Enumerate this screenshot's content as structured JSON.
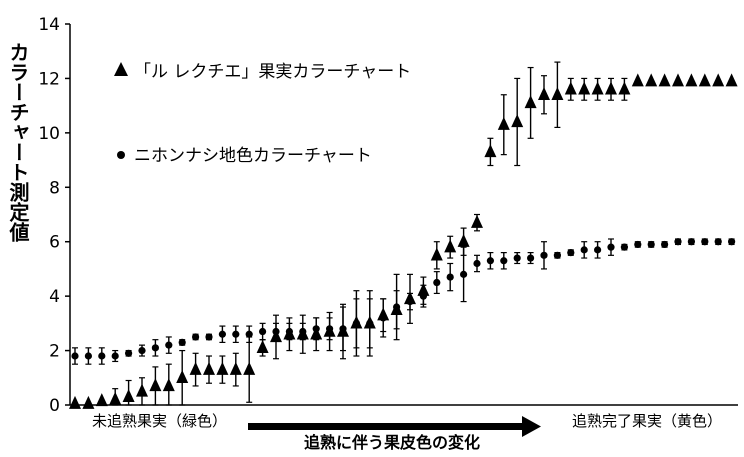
{
  "chart_data": {
    "type": "scatter",
    "ylabel": "カラーチャート測定値",
    "ylim": [
      0,
      14
    ],
    "yticks": [
      "0",
      "2",
      "4",
      "6",
      "8",
      "10",
      "12",
      "14"
    ],
    "x_left_label": "未追熟果実（緑色）",
    "x_middle_label": "追熟に伴う果皮色の変化",
    "x_right_label": "追熟完了果実（黄色）",
    "series": [
      {
        "name": "「ル レクチエ」果実カラーチャート",
        "marker": "triangle",
        "values": [
          0.05,
          0.05,
          0.15,
          0.2,
          0.3,
          0.5,
          0.7,
          0.7,
          1.0,
          1.3,
          1.3,
          1.3,
          1.3,
          1.3,
          2.1,
          2.5,
          2.6,
          2.6,
          2.6,
          2.7,
          2.7,
          3.0,
          3.0,
          3.3,
          3.5,
          3.9,
          4.2,
          5.5,
          5.8,
          6.0,
          6.7,
          9.3,
          10.3,
          10.4,
          11.1,
          11.4,
          11.4,
          11.6,
          11.6,
          11.6,
          11.6,
          11.6,
          11.9,
          11.9,
          11.9,
          11.9,
          11.9,
          11.9,
          11.9,
          11.9
        ],
        "errors": [
          0,
          0,
          0,
          0.4,
          0.6,
          0.5,
          0.7,
          0.8,
          1.0,
          0.6,
          0.5,
          0.5,
          0.6,
          1.2,
          0.3,
          0.8,
          0.6,
          0.7,
          0.6,
          0.7,
          1.0,
          0.9,
          1.2,
          0.6,
          0.7,
          0.9,
          0.5,
          0.5,
          0.4,
          0.5,
          0.3,
          0.5,
          1.1,
          1.6,
          1.3,
          0.7,
          1.2,
          0.4,
          0.4,
          0.4,
          0.4,
          0.4,
          0,
          0,
          0,
          0,
          0,
          0,
          0,
          0
        ]
      },
      {
        "name": "ニホンナシ地色カラーチャート",
        "marker": "circle",
        "values": [
          1.8,
          1.8,
          1.8,
          1.8,
          1.9,
          2.0,
          2.1,
          2.2,
          2.3,
          2.5,
          2.5,
          2.6,
          2.6,
          2.6,
          2.7,
          2.7,
          2.7,
          2.7,
          2.8,
          2.8,
          2.8,
          3.0,
          3.0,
          3.2,
          3.6,
          3.8,
          4.0,
          4.5,
          4.7,
          4.8,
          5.2,
          5.3,
          5.3,
          5.4,
          5.4,
          5.5,
          5.5,
          5.6,
          5.7,
          5.7,
          5.8,
          5.8,
          5.9,
          5.9,
          5.9,
          6.0,
          6.0,
          6.0,
          6.0,
          6.0
        ],
        "errors": [
          0.3,
          0.3,
          0.3,
          0.2,
          0.1,
          0.2,
          0.3,
          0.3,
          0.1,
          0.1,
          0.1,
          0.3,
          0.3,
          0.3,
          0.3,
          0.3,
          0.3,
          0.3,
          0.4,
          0.4,
          0.8,
          1.2,
          0.9,
          0.7,
          1.2,
          0.3,
          0.4,
          0.4,
          0.5,
          1.0,
          0.3,
          0.3,
          0.3,
          0.2,
          0.2,
          0.5,
          0.1,
          0.1,
          0.3,
          0.3,
          0.3,
          0.1,
          0.1,
          0.1,
          0.1,
          0.1,
          0.1,
          0.1,
          0.1,
          0.1
        ]
      }
    ]
  }
}
